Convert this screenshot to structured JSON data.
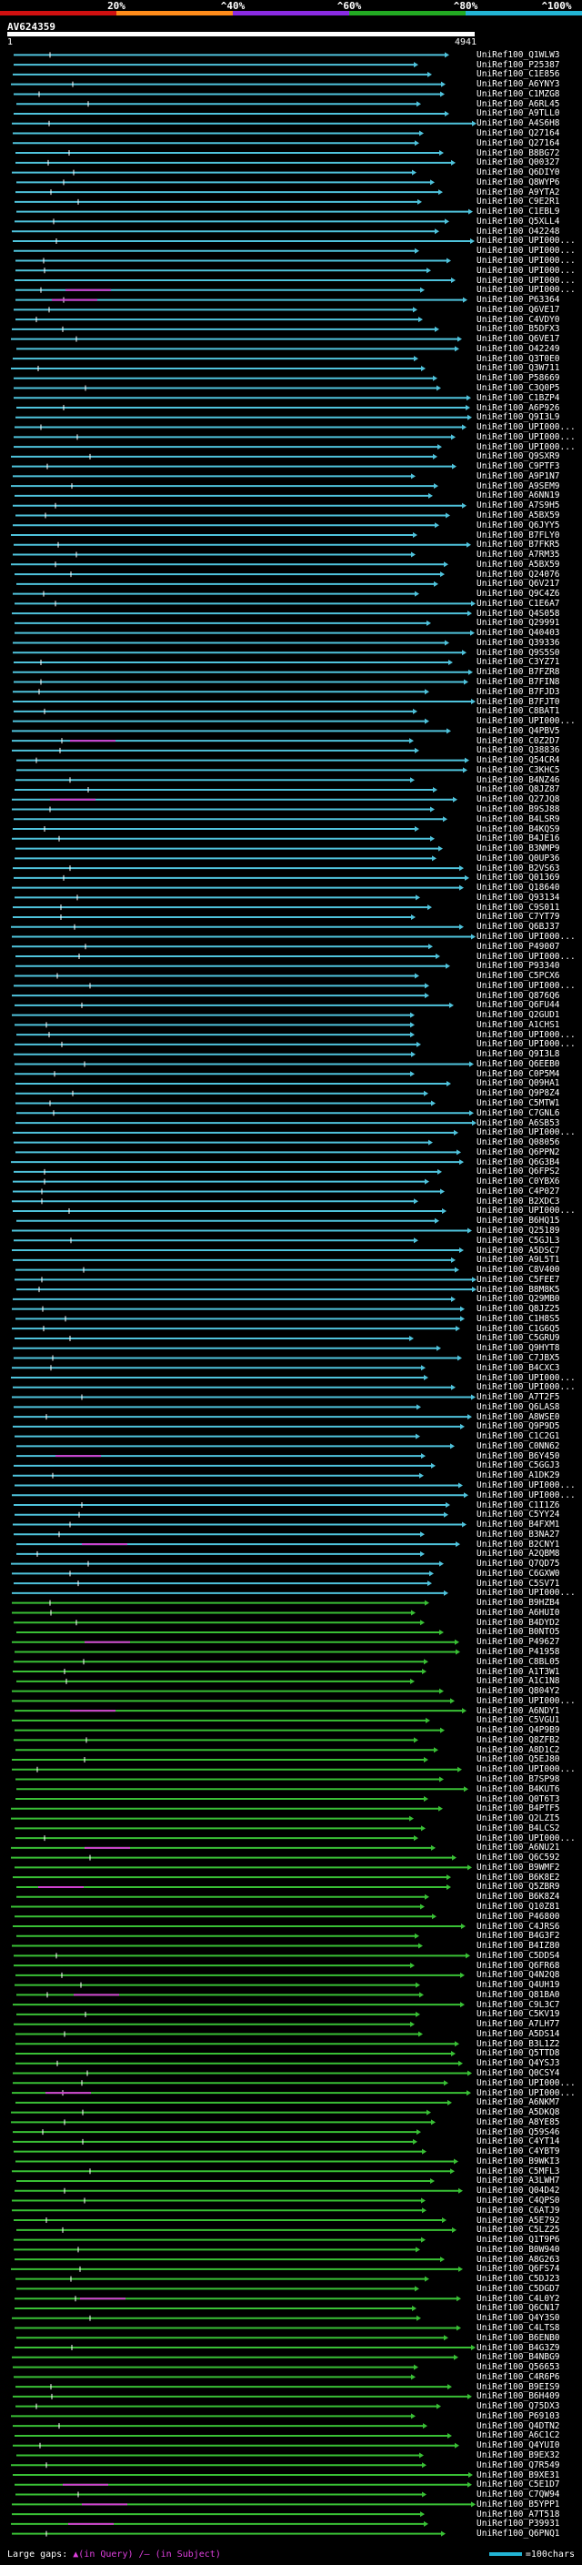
{
  "coverage_scale": {
    "labels": [
      "20%",
      "^40%",
      "^60%",
      "^80%",
      "^100%"
    ],
    "colors": [
      "#d01010",
      "#ff8c1a",
      "#8a2be2",
      "#22aa22",
      "#22b4d4"
    ]
  },
  "query": {
    "name": "AV624359",
    "start": "1",
    "end": "4941"
  },
  "colors": {
    "cyan": "#4fc3dc",
    "green": "#39c035",
    "gap": "#d040d0",
    "query": "#ffffff"
  },
  "hits": [
    "UniRef100_Q1WLW3",
    "UniRef100_P25387",
    "UniRef100_C1E856",
    "UniRef100_A6YNY3",
    "UniRef100_C1MZG8",
    "UniRef100_A6RL45",
    "UniRef100_A9TLL0",
    "UniRef100_A4S6H8",
    "UniRef100_Q27164",
    "UniRef100_Q27164",
    "UniRef100_B8BG72",
    "UniRef100_Q00327",
    "UniRef100_Q6DIY0",
    "UniRef100_Q8WYP6",
    "UniRef100_A9YTA2",
    "UniRef100_C9E2R1",
    "UniRef100_C1EBL9",
    "UniRef100_Q5XLL4",
    "UniRef100_O42248",
    "UniRef100_UPI000...",
    "UniRef100_UPI000...",
    "UniRef100_UPI000...",
    "UniRef100_UPI000...",
    "UniRef100_UPI000...",
    "UniRef100_UPI000...",
    "UniRef100_P63364",
    "UniRef100_Q6VE17",
    "UniRef100_C4VDY0",
    "UniRef100_B5DFX3",
    "UniRef100_Q6VE17",
    "UniRef100_O42249",
    "UniRef100_Q3T0E0",
    "UniRef100_Q3W711",
    "UniRef100_P58669",
    "UniRef100_C3Q0P5",
    "UniRef100_C1BZP4",
    "UniRef100_A6P926",
    "UniRef100_Q9I3L9",
    "UniRef100_UPI000...",
    "UniRef100_UPI000...",
    "UniRef100_UPI000...",
    "UniRef100_Q9SXR9",
    "UniRef100_C9PTF3",
    "UniRef100_A9P1N7",
    "UniRef100_A9SEM9",
    "UniRef100_A6NN19",
    "UniRef100_A7S9H5",
    "UniRef100_A5BX59",
    "UniRef100_Q6JYY5",
    "UniRef100_B7FLY0",
    "UniRef100_B7FKR5",
    "UniRef100_A7RM35",
    "UniRef100_A5BX59",
    "UniRef100_Q24076",
    "UniRef100_Q6V217",
    "UniRef100_Q9C4Z6",
    "UniRef100_C1E6A7",
    "UniRef100_Q4S058",
    "UniRef100_Q29991",
    "UniRef100_Q40403",
    "UniRef100_Q39336",
    "UniRef100_Q9S5S0",
    "UniRef100_C3YZ71",
    "UniRef100_B7FZR8",
    "UniRef100_B7FIN8",
    "UniRef100_B7FJD3",
    "UniRef100_B7FJT0",
    "UniRef100_C8BAT1",
    "UniRef100_UPI000...",
    "UniRef100_Q4PBV5",
    "UniRef100_C0Z2D7",
    "UniRef100_Q38836",
    "UniRef100_Q54CR4",
    "UniRef100_C3KHC5",
    "UniRef100_B4NZ46",
    "UniRef100_Q8JZ87",
    "UniRef100_Q27JQ8",
    "UniRef100_B9SJ88",
    "UniRef100_B4LSR9",
    "UniRef100_B4KQS9",
    "UniRef100_B4JE16",
    "UniRef100_B3NMP9",
    "UniRef100_Q0UP36",
    "UniRef100_B2VS63",
    "UniRef100_Q01369",
    "UniRef100_Q18640",
    "UniRef100_Q93134",
    "UniRef100_C9S011",
    "UniRef100_C7YT79",
    "UniRef100_Q6BJ37",
    "UniRef100_UPI000...",
    "UniRef100_P49007",
    "UniRef100_UPI000...",
    "UniRef100_P93340",
    "UniRef100_C5PCX6",
    "UniRef100_UPI000...",
    "UniRef100_Q876Q6",
    "UniRef100_Q6FU44",
    "UniRef100_Q2GUD1",
    "UniRef100_A1CHS1",
    "UniRef100_UPI000...",
    "UniRef100_UPI000...",
    "UniRef100_Q9I3L8",
    "UniRef100_Q6EEB0",
    "UniRef100_C0P5M4",
    "UniRef100_Q09HA1",
    "UniRef100_Q9P8Z4",
    "UniRef100_C5MTW1",
    "UniRef100_C7GNL6",
    "UniRef100_A6SB53",
    "UniRef100_UPI000...",
    "UniRef100_Q08056",
    "UniRef100_Q6PPN2",
    "UniRef100_Q6G3B4",
    "UniRef100_Q6FPS2",
    "UniRef100_C0YBX6",
    "UniRef100_C4P027",
    "UniRef100_B2XDC3",
    "UniRef100_UPI000...",
    "UniRef100_B6HQ15",
    "UniRef100_Q25189",
    "UniRef100_C5GJL3",
    "UniRef100_A5DSC7",
    "UniRef100_A9L5T1",
    "UniRef100_C8V400",
    "UniRef100_C5FEE7",
    "UniRef100_B8M8K5",
    "UniRef100_Q29MB0",
    "UniRef100_Q8JZ25",
    "UniRef100_C1H8S5",
    "UniRef100_C1G6Q5",
    "UniRef100_C5GRU9",
    "UniRef100_Q9HYT8",
    "UniRef100_C7JBX5",
    "UniRef100_B4CXC3",
    "UniRef100_UPI000...",
    "UniRef100_UPI000...",
    "UniRef100_A7T2F5",
    "UniRef100_Q6LAS8",
    "UniRef100_A8WSE0",
    "UniRef100_Q9P9D5",
    "UniRef100_C1C2G1",
    "UniRef100_C0NN62",
    "UniRef100_B6Y450",
    "UniRef100_C5GGJ3",
    "UniRef100_A1DK29",
    "UniRef100_UPI000...",
    "UniRef100_UPI000...",
    "UniRef100_C1I1Z6",
    "UniRef100_C5YY24",
    "UniRef100_B4FXM1",
    "UniRef100_B3NA27",
    "UniRef100_B2CNY1",
    "UniRef100_A2QBM8",
    "UniRef100_Q7QD75",
    "UniRef100_C6GXW0",
    "UniRef100_C5SV71",
    "UniRef100_UPI000...",
    "UniRef100_B9HZB4",
    "UniRef100_A6HUI0",
    "UniRef100_B4DYD2",
    "UniRef100_B0NTO5",
    "UniRef100_P49627",
    "UniRef100_P41958",
    "UniRef100_C8BL05",
    "UniRef100_A1T3W1",
    "UniRef100_A1C1N8",
    "UniRef100_Q804Y2",
    "UniRef100_UPI000...",
    "UniRef100_A6NDY1",
    "UniRef100_C5VGU1",
    "UniRef100_Q4P9B9",
    "UniRef100_Q8ZFB2",
    "UniRef100_A8D1C2",
    "UniRef100_Q5EJ80",
    "UniRef100_UPI000...",
    "UniRef100_B7SP98",
    "UniRef100_B4KUT6",
    "UniRef100_Q0T6T3",
    "UniRef100_B4PTF5",
    "UniRef100_Q2LZI5",
    "UniRef100_B4LCS2",
    "UniRef100_UPI000...",
    "UniRef100_A6NU21",
    "UniRef100_Q6C592",
    "UniRef100_B9WMF2",
    "UniRef100_B6K8E2",
    "UniRef100_Q5ZBR9",
    "UniRef100_B6K8Z4",
    "UniRef100_Q10Z81",
    "UniRef100_P46800",
    "UniRef100_C4JRS6",
    "UniRef100_B4G3F2",
    "UniRef100_B4IZ80",
    "UniRef100_C5DDS4",
    "UniRef100_Q6FR68",
    "UniRef100_Q4N2Q8",
    "UniRef100_Q4UH19",
    "UniRef100_Q81BA0",
    "UniRef100_C9L3C7",
    "UniRef100_C5KV19",
    "UniRef100_A7LH77",
    "UniRef100_A5DS14",
    "UniRef100_B3L1Z2",
    "UniRef100_Q5TTD8",
    "UniRef100_Q4YSJ3",
    "UniRef100_Q0CSY4",
    "UniRef100_UPI000...",
    "UniRef100_UPI000...",
    "UniRef100_A6NKM7",
    "UniRef100_A5DKQ8",
    "UniRef100_A8YE85",
    "UniRef100_Q59S46",
    "UniRef100_C4YT14",
    "UniRef100_C4YBT9",
    "UniRef100_B9WKI3",
    "UniRef100_C5MFL3",
    "UniRef100_A3LWH7",
    "UniRef100_Q04D42",
    "UniRef100_C4QPS0",
    "UniRef100_C6ATJ9",
    "UniRef100_A5E792",
    "UniRef100_C5LZ25",
    "UniRef100_Q1T9P6",
    "UniRef100_B0W940",
    "UniRef100_A8G263",
    "UniRef100_Q6FS74",
    "UniRef100_C5DJ23",
    "UniRef100_C5DGD7",
    "UniRef100_C4L0Y2",
    "UniRef100_Q6CN17",
    "UniRef100_Q4Y3S0",
    "UniRef100_C4LTS8",
    "UniRef100_B6ENB0",
    "UniRef100_B4G3Z9",
    "UniRef100_B4NBG9",
    "UniRef100_Q56653",
    "UniRef100_C4R6P6",
    "UniRef100_B9EIS9",
    "UniRef100_B6H409",
    "UniRef100_Q75DX3",
    "UniRef100_P69103",
    "UniRef100_Q4DTN2",
    "UniRef100_A6C1C2",
    "UniRef100_Q4YUI0",
    "UniRef100_B9EX32",
    "UniRef100_Q7R549",
    "UniRef100_B9XE31",
    "UniRef100_C5E1D7",
    "UniRef100_C7QW94",
    "UniRef100_B5YPP1",
    "UniRef100_A7T518",
    "UniRef100_P39931",
    "UniRef100_Q6PNQ1"
  ],
  "footer": {
    "large_gaps_label": "Large gaps:",
    "in_query": "▲(in Query)",
    "in_subject": "/— (in Subject)",
    "scale_label": "=100chars"
  }
}
